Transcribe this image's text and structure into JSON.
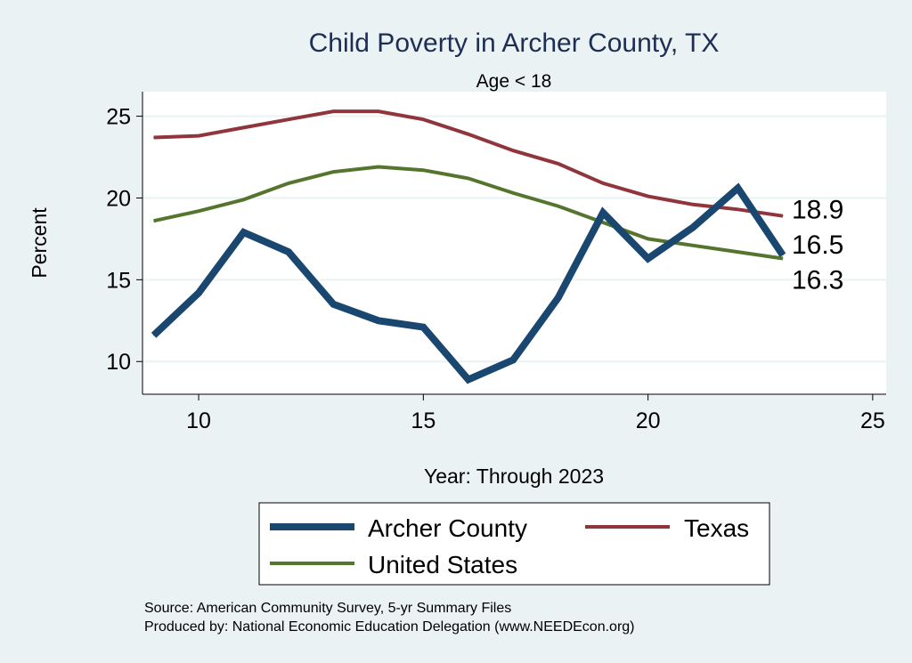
{
  "chart_data": {
    "type": "line",
    "title": "Child Poverty in Archer County, TX",
    "subtitle": "Age < 18",
    "xlabel": "Year: Through 2023",
    "ylabel": "Percent",
    "xlim": [
      8.75,
      25.3
    ],
    "ylim": [
      8.0,
      26.5
    ],
    "xticks": [
      10,
      15,
      20,
      25
    ],
    "yticks": [
      10,
      15,
      20,
      25
    ],
    "grid": true,
    "legend_placement": "bottom",
    "x": [
      9,
      10,
      11,
      12,
      13,
      14,
      15,
      16,
      17,
      18,
      19,
      20,
      21,
      22,
      23
    ],
    "series": [
      {
        "name": "Archer County",
        "color": "#1a476f",
        "width": 8,
        "values": [
          11.6,
          14.2,
          17.9,
          16.7,
          13.5,
          12.5,
          12.1,
          8.9,
          10.1,
          13.9,
          19.1,
          16.3,
          18.2,
          20.6,
          16.5
        ],
        "end_label": "16.5"
      },
      {
        "name": "Texas",
        "color": "#90353b",
        "width": 4,
        "values": [
          23.7,
          23.8,
          24.3,
          24.8,
          25.3,
          25.3,
          24.8,
          23.9,
          22.9,
          22.1,
          20.9,
          20.1,
          19.6,
          19.3,
          18.9
        ],
        "end_label": "18.9"
      },
      {
        "name": "United States",
        "color": "#55752f",
        "width": 4,
        "values": [
          18.6,
          19.2,
          19.9,
          20.9,
          21.6,
          21.9,
          21.7,
          21.2,
          20.3,
          19.5,
          18.5,
          17.5,
          17.1,
          16.7,
          16.3
        ],
        "end_label": "16.3"
      }
    ],
    "notes": [
      "Source: American Community Survey, 5-yr Summary Files",
      "Produced by: National Economic Education Delegation (www.NEEDEcon.org)"
    ]
  }
}
